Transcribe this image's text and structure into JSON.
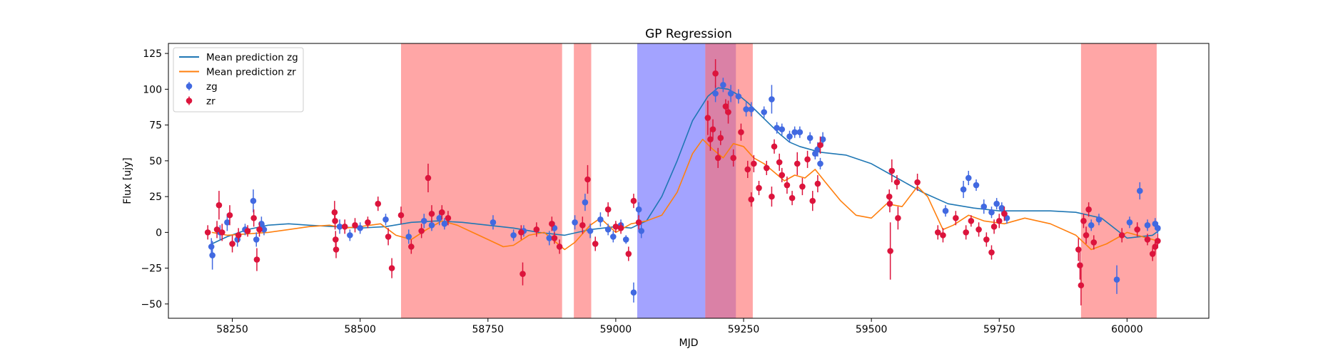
{
  "chart_data": {
    "type": "scatter",
    "title": "GP Regression",
    "xlabel": "MJD",
    "ylabel": "Flux [ujy]",
    "xlim": [
      58125,
      60160
    ],
    "ylim": [
      -60,
      132
    ],
    "xticks": [
      58250,
      58500,
      58750,
      59000,
      59250,
      59500,
      59750,
      60000
    ],
    "yticks": [
      -50,
      -25,
      0,
      25,
      50,
      75,
      100,
      125
    ],
    "grid": false,
    "legend_position": "top-left",
    "colors": {
      "zg_line": "#1f77b4",
      "zr_line": "#ff7f0e",
      "zg_points": "#4169e1",
      "zr_points": "#dc143c",
      "red_band": "#ff6b6b",
      "blue_band": "#6666ff"
    },
    "shaded_regions": [
      {
        "x0": 58580,
        "x1": 58895,
        "color": "red"
      },
      {
        "x0": 58918,
        "x1": 58952,
        "color": "red"
      },
      {
        "x0": 59042,
        "x1": 59175,
        "color": "blue"
      },
      {
        "x0": 59175,
        "x1": 59235,
        "color": "blue"
      },
      {
        "x0": 59175,
        "x1": 59268,
        "color": "red"
      },
      {
        "x0": 59910,
        "x1": 60058,
        "color": "red"
      }
    ],
    "series": [
      {
        "name": "Mean prediction zg",
        "kind": "line",
        "color": "#1f77b4",
        "x": [
          58210,
          58240,
          58280,
          58320,
          58360,
          58400,
          58450,
          58500,
          58550,
          58600,
          58650,
          58700,
          58750,
          58800,
          58850,
          58900,
          58950,
          59000,
          59030,
          59060,
          59090,
          59120,
          59150,
          59180,
          59200,
          59220,
          59240,
          59260,
          59280,
          59300,
          59320,
          59340,
          59360,
          59400,
          59450,
          59500,
          59550,
          59600,
          59650,
          59700,
          59750,
          59800,
          59850,
          59900,
          59950,
          60000,
          60050,
          60065
        ],
        "y": [
          -8,
          -3,
          2,
          5,
          6,
          5,
          4,
          3,
          4,
          7,
          8,
          7,
          5,
          3,
          0,
          -2,
          2,
          4,
          3,
          8,
          25,
          50,
          78,
          95,
          101,
          100,
          96,
          90,
          83,
          76,
          69,
          63,
          60,
          56,
          54,
          48,
          38,
          28,
          20,
          17,
          15,
          15,
          15,
          14,
          10,
          -4,
          -2,
          2
        ]
      },
      {
        "name": "Mean prediction zr",
        "kind": "line",
        "color": "#ff7f0e",
        "x": [
          58210,
          58240,
          58280,
          58320,
          58360,
          58400,
          58440,
          58470,
          58500,
          58540,
          58570,
          58600,
          58630,
          58660,
          58690,
          58720,
          58750,
          58780,
          58800,
          58830,
          58860,
          58880,
          58900,
          58920,
          58950,
          58970,
          59000,
          59030,
          59060,
          59090,
          59120,
          59150,
          59170,
          59190,
          59210,
          59230,
          59250,
          59270,
          59290,
          59310,
          59330,
          59350,
          59370,
          59390,
          59410,
          59440,
          59470,
          59500,
          59530,
          59560,
          59590,
          59610,
          59640,
          59660,
          59690,
          59720,
          59760,
          59800,
          59850,
          59900,
          59930,
          59960,
          60000,
          60030,
          60060
        ],
        "y": [
          0,
          -2,
          -1,
          0,
          2,
          4,
          5,
          3,
          4,
          6,
          -2,
          -5,
          2,
          8,
          5,
          0,
          -5,
          -10,
          -9,
          -2,
          0,
          -6,
          -12,
          -7,
          5,
          10,
          0,
          6,
          8,
          12,
          28,
          55,
          65,
          58,
          52,
          62,
          60,
          52,
          48,
          42,
          36,
          40,
          38,
          44,
          35,
          22,
          12,
          10,
          20,
          18,
          32,
          25,
          2,
          5,
          12,
          8,
          6,
          10,
          6,
          -2,
          -12,
          -8,
          0,
          -3,
          -6
        ]
      },
      {
        "name": "zg",
        "kind": "errorbar",
        "color": "#4169e1",
        "points": [
          [
            58209,
            -10,
            6
          ],
          [
            58211,
            -16,
            10
          ],
          [
            58226,
            0,
            5
          ],
          [
            58240,
            7,
            6
          ],
          [
            58260,
            -5,
            5
          ],
          [
            58275,
            2,
            4
          ],
          [
            58291,
            22,
            8
          ],
          [
            58297,
            -5,
            5
          ],
          [
            58307,
            6,
            5
          ],
          [
            58312,
            2,
            4
          ],
          [
            58460,
            4,
            5
          ],
          [
            58480,
            -2,
            4
          ],
          [
            58500,
            3,
            4
          ],
          [
            58550,
            9,
            4
          ],
          [
            58595,
            -3,
            5
          ],
          [
            58625,
            8,
            5
          ],
          [
            58640,
            5,
            4
          ],
          [
            58655,
            10,
            5
          ],
          [
            58665,
            6,
            4
          ],
          [
            58760,
            7,
            5
          ],
          [
            58800,
            -2,
            4
          ],
          [
            58820,
            1,
            4
          ],
          [
            58870,
            -4,
            5
          ],
          [
            58880,
            3,
            4
          ],
          [
            58920,
            7,
            5
          ],
          [
            58940,
            21,
            6
          ],
          [
            58950,
            1,
            5
          ],
          [
            58970,
            9,
            5
          ],
          [
            58985,
            2,
            4
          ],
          [
            58995,
            -3,
            4
          ],
          [
            59010,
            5,
            4
          ],
          [
            59020,
            -5,
            3
          ],
          [
            59035,
            -42,
            7
          ],
          [
            59045,
            16,
            5
          ],
          [
            59050,
            1,
            5
          ],
          [
            59195,
            97,
            6
          ],
          [
            59210,
            103,
            5
          ],
          [
            59225,
            97,
            6
          ],
          [
            59240,
            95,
            5
          ],
          [
            59255,
            86,
            5
          ],
          [
            59265,
            86,
            5
          ],
          [
            59290,
            84,
            4
          ],
          [
            59305,
            93,
            10
          ],
          [
            59315,
            73,
            4
          ],
          [
            59325,
            72,
            4
          ],
          [
            59340,
            67,
            4
          ],
          [
            59350,
            70,
            4
          ],
          [
            59360,
            70,
            4
          ],
          [
            59380,
            66,
            4
          ],
          [
            59390,
            55,
            4
          ],
          [
            59395,
            58,
            5
          ],
          [
            59400,
            48,
            4
          ],
          [
            59405,
            65,
            5
          ],
          [
            59645,
            15,
            4
          ],
          [
            59680,
            30,
            6
          ],
          [
            59690,
            38,
            5
          ],
          [
            59705,
            33,
            4
          ],
          [
            59720,
            18,
            5
          ],
          [
            59735,
            14,
            4
          ],
          [
            59745,
            20,
            4
          ],
          [
            59755,
            17,
            4
          ],
          [
            59765,
            10,
            4
          ],
          [
            59930,
            5,
            4
          ],
          [
            59945,
            9,
            4
          ],
          [
            59980,
            -33,
            10
          ],
          [
            60005,
            7,
            4
          ],
          [
            60025,
            29,
            6
          ],
          [
            60040,
            5,
            4
          ],
          [
            60055,
            6,
            4
          ],
          [
            60060,
            3,
            4
          ]
        ]
      },
      {
        "name": "zr",
        "kind": "errorbar",
        "color": "#dc143c",
        "points": [
          [
            58202,
            0,
            5
          ],
          [
            58220,
            2,
            6
          ],
          [
            58224,
            19,
            10
          ],
          [
            58230,
            0,
            6
          ],
          [
            58245,
            12,
            7
          ],
          [
            58250,
            -8,
            6
          ],
          [
            58262,
            -2,
            5
          ],
          [
            58280,
            1,
            4
          ],
          [
            58292,
            10,
            6
          ],
          [
            58298,
            -19,
            8
          ],
          [
            58303,
            2,
            5
          ],
          [
            58450,
            14,
            8
          ],
          [
            58451,
            8,
            6
          ],
          [
            58452,
            -5,
            6
          ],
          [
            58453,
            -12,
            6
          ],
          [
            58470,
            4,
            5
          ],
          [
            58490,
            5,
            5
          ],
          [
            58515,
            7,
            4
          ],
          [
            58535,
            20,
            5
          ],
          [
            58555,
            -3,
            6
          ],
          [
            58562,
            -25,
            7
          ],
          [
            58580,
            12,
            6
          ],
          [
            58600,
            -10,
            5
          ],
          [
            58620,
            1,
            5
          ],
          [
            58633,
            38,
            10
          ],
          [
            58640,
            13,
            6
          ],
          [
            58660,
            14,
            5
          ],
          [
            58672,
            10,
            5
          ],
          [
            58815,
            0,
            5
          ],
          [
            58818,
            -29,
            8
          ],
          [
            58845,
            2,
            5
          ],
          [
            58875,
            6,
            5
          ],
          [
            58880,
            -4,
            4
          ],
          [
            58890,
            -10,
            5
          ],
          [
            58935,
            5,
            6
          ],
          [
            58945,
            37,
            10
          ],
          [
            58960,
            -8,
            5
          ],
          [
            58985,
            16,
            5
          ],
          [
            59000,
            4,
            4
          ],
          [
            59010,
            3,
            4
          ],
          [
            59025,
            -15,
            5
          ],
          [
            59035,
            22,
            5
          ],
          [
            59045,
            7,
            5
          ],
          [
            59180,
            80,
            12
          ],
          [
            59185,
            65,
            8
          ],
          [
            59190,
            72,
            7
          ],
          [
            59195,
            111,
            10
          ],
          [
            59200,
            52,
            7
          ],
          [
            59205,
            66,
            5
          ],
          [
            59215,
            88,
            5
          ],
          [
            59220,
            84,
            8
          ],
          [
            59230,
            52,
            6
          ],
          [
            59245,
            70,
            6
          ],
          [
            59258,
            44,
            6
          ],
          [
            59265,
            23,
            5
          ],
          [
            59270,
            48,
            6
          ],
          [
            59280,
            31,
            5
          ],
          [
            59295,
            45,
            5
          ],
          [
            59305,
            25,
            7
          ],
          [
            59310,
            60,
            5
          ],
          [
            59320,
            49,
            6
          ],
          [
            59325,
            40,
            5
          ],
          [
            59335,
            33,
            6
          ],
          [
            59345,
            24,
            5
          ],
          [
            59355,
            48,
            8
          ],
          [
            59365,
            32,
            6
          ],
          [
            59375,
            51,
            6
          ],
          [
            59385,
            22,
            7
          ],
          [
            59395,
            34,
            6
          ],
          [
            59400,
            61,
            6
          ],
          [
            59535,
            25,
            5
          ],
          [
            59536,
            20,
            6
          ],
          [
            59537,
            -13,
            20
          ],
          [
            59540,
            43,
            8
          ],
          [
            59550,
            35,
            5
          ],
          [
            59552,
            10,
            8
          ],
          [
            59590,
            35,
            6
          ],
          [
            59630,
            0,
            5
          ],
          [
            59640,
            -2,
            5
          ],
          [
            59665,
            10,
            5
          ],
          [
            59685,
            0,
            5
          ],
          [
            59695,
            8,
            4
          ],
          [
            59710,
            2,
            5
          ],
          [
            59725,
            -5,
            5
          ],
          [
            59735,
            -14,
            5
          ],
          [
            59740,
            4,
            5
          ],
          [
            59750,
            8,
            5
          ],
          [
            59760,
            13,
            5
          ],
          [
            59905,
            -12,
            8
          ],
          [
            59908,
            -23,
            10
          ],
          [
            59910,
            -37,
            14
          ],
          [
            59915,
            8,
            5
          ],
          [
            59920,
            -2,
            6
          ],
          [
            59925,
            16,
            5
          ],
          [
            59935,
            -7,
            5
          ],
          [
            59990,
            -2,
            5
          ],
          [
            60020,
            2,
            5
          ],
          [
            60040,
            -5,
            4
          ],
          [
            60050,
            -15,
            5
          ],
          [
            60055,
            -10,
            5
          ],
          [
            60060,
            -6,
            5
          ]
        ]
      }
    ],
    "legend": [
      "Mean prediction zg",
      "Mean prediction zr",
      "zg",
      "zr"
    ]
  }
}
